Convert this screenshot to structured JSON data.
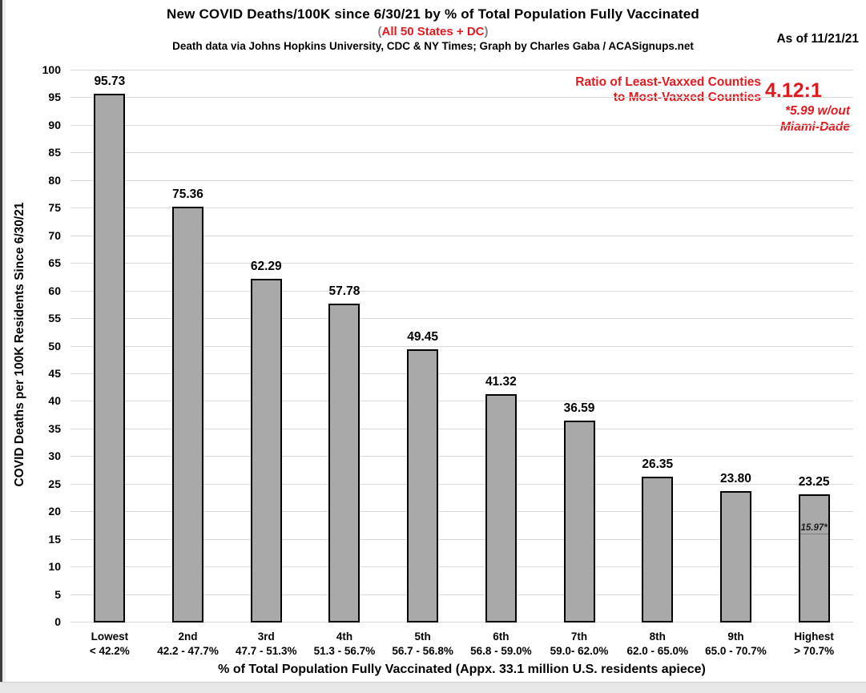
{
  "window": {
    "as_of": "As of 11/21/21"
  },
  "header": {
    "title": "New COVID Deaths/100K since 6/30/21 by % of Total Population Fully Vaccinated",
    "subtitle_open_paren": "(",
    "subtitle": "All 50 States + DC",
    "subtitle_close_paren": ")",
    "credit": "Death data via Johns Hopkins University, CDC & NY Times; Graph by Charles Gaba / ACASignups.net"
  },
  "annotation": {
    "label_line1": "Ratio of Least-Vaxxed Counties",
    "label_line2": "to Most-Vaxxed Counties",
    "ratio": "4.12:1",
    "note_line1": "*5.99 w/out",
    "note_line2": "Miami-Dade"
  },
  "colors": {
    "accent_red": "#e01b20",
    "bar_fill": "#a9a9a9",
    "bar_border": "#000000",
    "gridline": "#d9d9d9",
    "paren_gray": "#7f7f7f"
  },
  "chart_data": {
    "type": "bar",
    "title": "New COVID Deaths/100K since 6/30/21 by % of Total Population Fully Vaccinated",
    "subtitle": "(All 50 States + DC)",
    "xlabel": "% of Total Population Fully Vaccinated (Appx. 33.1 million U.S. residents apiece)",
    "ylabel": "COVID Deaths per 100K Residents Since 6/30/21",
    "ylim": [
      0,
      100
    ],
    "ytick_step": 5,
    "grid": true,
    "legend": "none",
    "categories": [
      {
        "tier": "Lowest",
        "range": "< 42.2%"
      },
      {
        "tier": "2nd",
        "range": "42.2 - 47.7%"
      },
      {
        "tier": "3rd",
        "range": "47.7 - 51.3%"
      },
      {
        "tier": "4th",
        "range": "51.3 - 56.7%"
      },
      {
        "tier": "5th",
        "range": "56.7 - 56.8%"
      },
      {
        "tier": "6th",
        "range": "56.8 - 59.0%"
      },
      {
        "tier": "7th",
        "range": "59.0- 62.0%"
      },
      {
        "tier": "8th",
        "range": "62.0 - 65.0%"
      },
      {
        "tier": "9th",
        "range": "65.0 - 70.7%"
      },
      {
        "tier": "Highest",
        "range": "> 70.7%"
      }
    ],
    "values": [
      95.73,
      75.36,
      62.29,
      57.78,
      49.45,
      41.32,
      36.59,
      26.35,
      23.8,
      23.25
    ],
    "value_labels": [
      "95.73",
      "75.36",
      "62.29",
      "57.78",
      "49.45",
      "41.32",
      "36.59",
      "26.35",
      "23.80",
      "23.25"
    ],
    "inner_marker": {
      "bar_index": 9,
      "value": 15.97,
      "label": "15.97*"
    }
  }
}
